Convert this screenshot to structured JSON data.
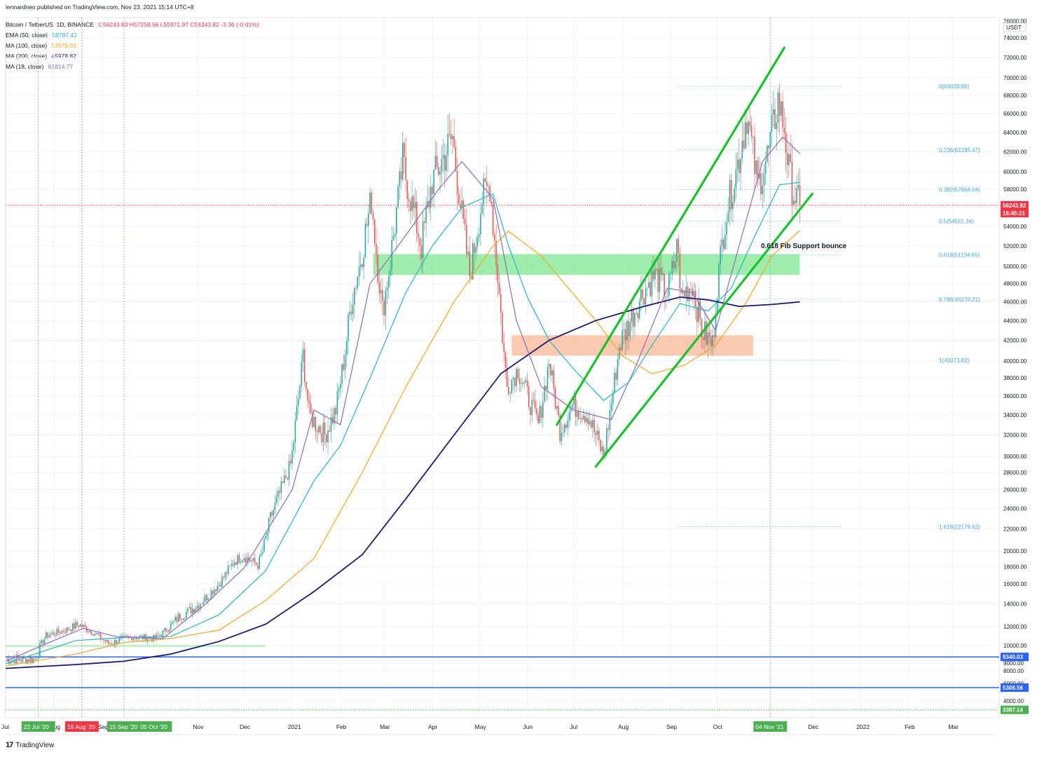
{
  "publisher": "lennardneo published on TradingView.com, Nov 23, 2021 15:14 UTC+8",
  "header": {
    "symbol": "Bitcoin / TetherUS, 1D, BINANCE",
    "ohlc": "O56243.83 H57258.56 L55971.97 C56243.82 -3.36 (-0.01%)",
    "indicators": [
      {
        "label": "EMA (50, close)",
        "value": "58787.42",
        "color": "#26b5c9"
      },
      {
        "label": "MA (100, close)",
        "value": "53578.03",
        "color": "#f5a623"
      },
      {
        "label": "MA (200, close)",
        "value": "45978.82",
        "color": "#1b1a6e"
      },
      {
        "label": "MA (18, close)",
        "value": "61814.77",
        "color": "#8e6bbf"
      }
    ]
  },
  "footer": {
    "brand": "TradingView",
    "logo": "tradingview-logo-icon"
  },
  "chart_data": {
    "type": "candlestick",
    "title": "Bitcoin / TetherUS, 1D, BINANCE",
    "y_axis": {
      "unit": "USDT",
      "scale": "log",
      "top_label": "76000.00",
      "tick_labels": [
        "74000.00",
        "72000.00",
        "70000.00",
        "68000.00",
        "66000.00",
        "64000.00",
        "62000.00",
        "60000.00",
        "58000.00",
        "56000.00",
        "54000.00",
        "52000.00",
        "50000.00",
        "48000.00",
        "46000.00",
        "44000.00",
        "42000.00",
        "40000.00",
        "38000.00",
        "36000.00",
        "34000.00",
        "32000.00",
        "30000.00",
        "28000.00",
        "26000.00",
        "24000.00",
        "22000.00",
        "20000.00",
        "18000.00",
        "16000.00",
        "14000.00",
        "12000.00",
        "10000.00",
        "9000.00",
        "8000.00",
        "6000.00",
        "5000.00",
        "4000.00"
      ],
      "price_badges": [
        {
          "text": "56243.82",
          "value": 56243.82,
          "color": "#f23645"
        },
        {
          "text": "16:45:21",
          "value": 55400,
          "color": "#f23645"
        },
        {
          "text": "9340.03",
          "value": 9340.03,
          "color": "#2962ff"
        },
        {
          "text": "5308.56",
          "value": 5308.56,
          "color": "#2962ff"
        },
        {
          "text": "3387.14",
          "value": 3387.14,
          "color": "#4caf50"
        }
      ]
    },
    "x_axis": {
      "range": [
        "2020-07-01",
        "2022-03-31"
      ],
      "ticks": [
        {
          "t": "Jul",
          "d": "2020-07-01"
        },
        {
          "t": "Aug",
          "d": "2020-08-01"
        },
        {
          "t": "Sep",
          "d": "2020-09-01"
        },
        {
          "t": "Nov",
          "d": "2020-11-01"
        },
        {
          "t": "Dec",
          "d": "2020-12-01"
        },
        {
          "t": "2021",
          "d": "2021-01-01"
        },
        {
          "t": "Feb",
          "d": "2021-02-01"
        },
        {
          "t": "Mar",
          "d": "2021-03-01"
        },
        {
          "t": "Apr",
          "d": "2021-04-01"
        },
        {
          "t": "May",
          "d": "2021-05-01"
        },
        {
          "t": "Jun",
          "d": "2021-06-01"
        },
        {
          "t": "Jul",
          "d": "2021-07-01"
        },
        {
          "t": "Aug",
          "d": "2021-08-01"
        },
        {
          "t": "Sep",
          "d": "2021-09-01"
        },
        {
          "t": "Oct",
          "d": "2021-10-01"
        },
        {
          "t": "Dec",
          "d": "2021-12-01"
        },
        {
          "t": "2022",
          "d": "2022-01-01"
        },
        {
          "t": "Feb",
          "d": "2022-02-01"
        },
        {
          "t": "Mar",
          "d": "2022-03-01"
        }
      ],
      "date_badges": [
        {
          "t": "22 Jul '20",
          "d": "2020-07-22",
          "color": "#4caf50"
        },
        {
          "t": "19 Aug '20",
          "d": "2020-08-19",
          "color": "#f23645"
        },
        {
          "t": "15 Sep '20",
          "d": "2020-09-15",
          "color": "#4caf50"
        },
        {
          "t": "05 Oct '20",
          "d": "2020-10-05",
          "color": "#4caf50"
        },
        {
          "t": "04 Nov '21",
          "d": "2021-11-04",
          "color": "#4caf50"
        }
      ]
    },
    "vertical_markers": [
      {
        "d": "2020-07-22",
        "color": "#4caf50"
      },
      {
        "d": "2020-08-19",
        "color": "#f23645"
      },
      {
        "d": "2020-09-15",
        "color": "#4caf50"
      },
      {
        "d": "2021-11-04",
        "color": "#4caf50"
      }
    ],
    "close_path": [
      [
        "2020-07-01",
        9200
      ],
      [
        "2020-07-20",
        9200
      ],
      [
        "2020-07-27",
        11000
      ],
      [
        "2020-08-10",
        11700
      ],
      [
        "2020-08-17",
        12200
      ],
      [
        "2020-08-25",
        11500
      ],
      [
        "2020-09-05",
        10200
      ],
      [
        "2020-09-20",
        10900
      ],
      [
        "2020-10-05",
        10700
      ],
      [
        "2020-10-20",
        12800
      ],
      [
        "2020-11-01",
        13800
      ],
      [
        "2020-11-15",
        16000
      ],
      [
        "2020-11-25",
        18700
      ],
      [
        "2020-12-01",
        19300
      ],
      [
        "2020-12-10",
        18200
      ],
      [
        "2020-12-18",
        23000
      ],
      [
        "2020-12-31",
        29000
      ],
      [
        "2021-01-08",
        40500
      ],
      [
        "2021-01-12",
        34000
      ],
      [
        "2021-01-22",
        32000
      ],
      [
        "2021-01-29",
        34500
      ],
      [
        "2021-02-08",
        46000
      ],
      [
        "2021-02-21",
        57000
      ],
      [
        "2021-02-28",
        45000
      ],
      [
        "2021-03-13",
        61000
      ],
      [
        "2021-03-25",
        52000
      ],
      [
        "2021-04-01",
        59000
      ],
      [
        "2021-04-14",
        63500
      ],
      [
        "2021-04-25",
        49000
      ],
      [
        "2021-05-03",
        57000
      ],
      [
        "2021-05-08",
        58500
      ],
      [
        "2021-05-13",
        49000
      ],
      [
        "2021-05-19",
        37000
      ],
      [
        "2021-05-26",
        39000
      ],
      [
        "2021-06-08",
        33000
      ],
      [
        "2021-06-15",
        40000
      ],
      [
        "2021-06-22",
        32500
      ],
      [
        "2021-06-30",
        35000
      ],
      [
        "2021-07-10",
        34000
      ],
      [
        "2021-07-20",
        30000
      ],
      [
        "2021-07-30",
        41500
      ],
      [
        "2021-08-14",
        47000
      ],
      [
        "2021-08-22",
        49000
      ],
      [
        "2021-08-30",
        47000
      ],
      [
        "2021-09-06",
        52500
      ],
      [
        "2021-09-07",
        46500
      ],
      [
        "2021-09-15",
        48000
      ],
      [
        "2021-09-21",
        43000
      ],
      [
        "2021-09-28",
        41500
      ],
      [
        "2021-10-01",
        48000
      ],
      [
        "2021-10-06",
        55000
      ],
      [
        "2021-10-15",
        61500
      ],
      [
        "2021-10-20",
        66000
      ],
      [
        "2021-10-27",
        58500
      ],
      [
        "2021-11-03",
        62000
      ],
      [
        "2021-11-09",
        67500
      ],
      [
        "2021-11-13",
        64500
      ],
      [
        "2021-11-16",
        60000
      ],
      [
        "2021-11-19",
        57500
      ],
      [
        "2021-11-23",
        56243.82
      ]
    ],
    "moving_averages": [
      {
        "name": "EMA (50, close)",
        "color": "#26b5c9",
        "points": [
          [
            "2020-07-01",
            8900
          ],
          [
            "2020-08-15",
            10500
          ],
          [
            "2020-09-15",
            10800
          ],
          [
            "2020-10-15",
            10900
          ],
          [
            "2020-11-15",
            13000
          ],
          [
            "2020-12-15",
            17500
          ],
          [
            "2021-01-15",
            27000
          ],
          [
            "2021-02-01",
            31000
          ],
          [
            "2021-02-20",
            38000
          ],
          [
            "2021-03-15",
            47000
          ],
          [
            "2021-04-01",
            52000
          ],
          [
            "2021-04-20",
            56000
          ],
          [
            "2021-05-10",
            57500
          ],
          [
            "2021-05-20",
            52000
          ],
          [
            "2021-06-01",
            46500
          ],
          [
            "2021-06-15",
            42000
          ],
          [
            "2021-07-01",
            39000
          ],
          [
            "2021-07-20",
            35500
          ],
          [
            "2021-08-05",
            37500
          ],
          [
            "2021-08-20",
            41500
          ],
          [
            "2021-09-07",
            45800
          ],
          [
            "2021-09-25",
            45000
          ],
          [
            "2021-10-10",
            47500
          ],
          [
            "2021-10-25",
            53000
          ],
          [
            "2021-11-10",
            58500
          ],
          [
            "2021-11-23",
            58787.42
          ]
        ]
      },
      {
        "name": "MA (100, close)",
        "color": "#f5a623",
        "points": [
          [
            "2020-07-01",
            8600
          ],
          [
            "2020-08-15",
            9500
          ],
          [
            "2020-09-15",
            10300
          ],
          [
            "2020-10-15",
            10700
          ],
          [
            "2020-11-15",
            11600
          ],
          [
            "2020-12-15",
            14300
          ],
          [
            "2021-01-15",
            19000
          ],
          [
            "2021-02-15",
            28000
          ],
          [
            "2021-03-15",
            37000
          ],
          [
            "2021-04-15",
            46000
          ],
          [
            "2021-05-10",
            52000
          ],
          [
            "2021-05-20",
            53500
          ],
          [
            "2021-06-10",
            51000
          ],
          [
            "2021-06-25",
            48000
          ],
          [
            "2021-07-15",
            44000
          ],
          [
            "2021-08-01",
            40500
          ],
          [
            "2021-08-20",
            38500
          ],
          [
            "2021-09-10",
            39500
          ],
          [
            "2021-09-30",
            41500
          ],
          [
            "2021-10-20",
            46000
          ],
          [
            "2021-11-05",
            51000
          ],
          [
            "2021-11-23",
            53578.03
          ]
        ]
      },
      {
        "name": "MA (200, close)",
        "color": "#1b1a6e",
        "points": [
          [
            "2020-07-01",
            8300
          ],
          [
            "2020-08-15",
            8800
          ],
          [
            "2020-09-15",
            9100
          ],
          [
            "2020-10-15",
            9500
          ],
          [
            "2020-11-15",
            10400
          ],
          [
            "2020-12-15",
            12200
          ],
          [
            "2021-01-15",
            15200
          ],
          [
            "2021-02-15",
            19500
          ],
          [
            "2021-03-15",
            25000
          ],
          [
            "2021-04-15",
            32000
          ],
          [
            "2021-05-15",
            38500
          ],
          [
            "2021-06-15",
            42000
          ],
          [
            "2021-07-15",
            44000
          ],
          [
            "2021-08-15",
            45500
          ],
          [
            "2021-09-07",
            46500
          ],
          [
            "2021-09-25",
            46200
          ],
          [
            "2021-10-15",
            45500
          ],
          [
            "2021-11-05",
            45700
          ],
          [
            "2021-11-23",
            45978.82
          ]
        ]
      },
      {
        "name": "MA (18, close)",
        "color": "#8e6bbf",
        "points": [
          [
            "2020-07-01",
            9100
          ],
          [
            "2020-08-01",
            10500
          ],
          [
            "2020-08-20",
            11800
          ],
          [
            "2020-09-10",
            10900
          ],
          [
            "2020-10-10",
            10700
          ],
          [
            "2020-11-05",
            13800
          ],
          [
            "2020-12-01",
            17800
          ],
          [
            "2021-01-01",
            26000
          ],
          [
            "2021-01-15",
            34500
          ],
          [
            "2021-02-01",
            33000
          ],
          [
            "2021-02-20",
            48000
          ],
          [
            "2021-03-10",
            52000
          ],
          [
            "2021-04-05",
            58000
          ],
          [
            "2021-04-20",
            61000
          ],
          [
            "2021-05-10",
            57000
          ],
          [
            "2021-05-25",
            44000
          ],
          [
            "2021-06-10",
            37000
          ],
          [
            "2021-07-01",
            34500
          ],
          [
            "2021-07-25",
            33500
          ],
          [
            "2021-08-10",
            39500
          ],
          [
            "2021-08-30",
            47500
          ],
          [
            "2021-09-15",
            47000
          ],
          [
            "2021-09-30",
            43000
          ],
          [
            "2021-10-15",
            52000
          ],
          [
            "2021-10-30",
            61000
          ],
          [
            "2021-11-12",
            63500
          ],
          [
            "2021-11-23",
            61814.77
          ]
        ]
      }
    ],
    "fib_levels": [
      {
        "label": "0(69028.86)",
        "value": 69028.86
      },
      {
        "label": "0.236(62195.47)",
        "value": 62195.47
      },
      {
        "label": "0.382(57968.04)",
        "value": 57968.04
      },
      {
        "label": "0.5(54551.34)",
        "value": 54551.34
      },
      {
        "label": "0.618(51134.65)",
        "value": 51134.65
      },
      {
        "label": "0.786(46270.21)",
        "value": 46270.21
      },
      {
        "label": "1(40073.83)",
        "value": 40073.83
      },
      {
        "label": "1.618(22179.62)",
        "value": 22179.62
      }
    ],
    "zones": [
      {
        "from": "2021-02-22",
        "to": "2021-11-23",
        "low": 49000,
        "high": 51200,
        "color": "#76e68a"
      },
      {
        "from": "2021-05-22",
        "to": "2021-10-24",
        "low": 40500,
        "high": 42500,
        "color": "#f9b28e"
      }
    ],
    "horizontal_lines": [
      {
        "value": 56243.82,
        "color": "#f23645",
        "style": "dotted"
      },
      {
        "value": 9340.03,
        "color": "#2962ff",
        "style": "solid"
      },
      {
        "value": 5308.56,
        "color": "#2962ff",
        "style": "solid"
      },
      {
        "value": 3387.14,
        "color": "#4caf50",
        "style": "dotted"
      }
    ],
    "trend_lines": [
      {
        "from": [
          "2021-06-20",
          33000
        ],
        "to": [
          "2021-11-13",
          73000
        ],
        "color": "#17c22a"
      },
      {
        "from": [
          "2021-07-15",
          28700
        ],
        "to": [
          "2021-12-01",
          57500
        ],
        "color": "#17c22a"
      }
    ],
    "annotations": [
      {
        "text": "0.618 Fib Support bounce",
        "d": "2021-10-29",
        "value": 52000
      }
    ]
  }
}
